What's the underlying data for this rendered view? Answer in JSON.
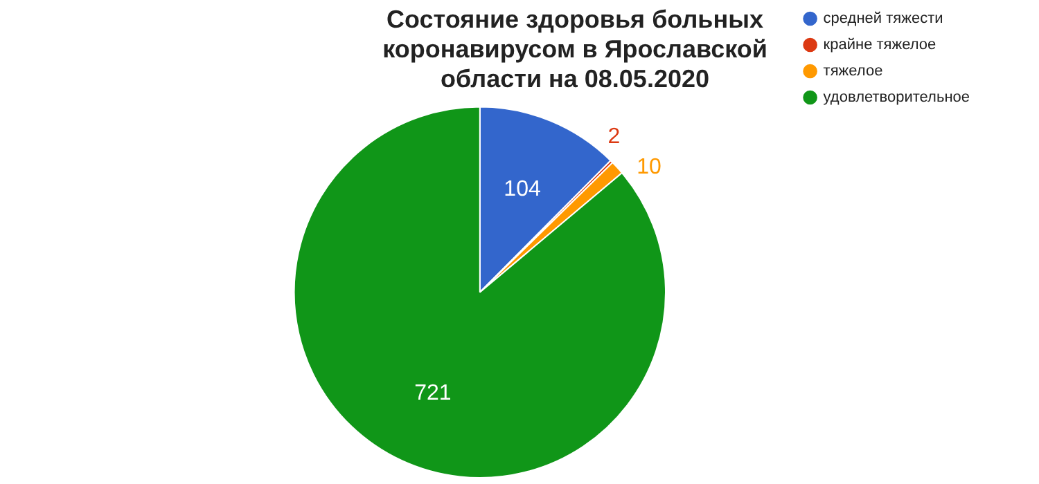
{
  "chart_data": {
    "type": "pie",
    "title": "Состояние здоровья больных коронавирусом в Ярославской области на 08.05.2020",
    "categories": [
      "средней тяжести",
      "крайне тяжелое",
      "тяжелое",
      "удовлетворительное"
    ],
    "values": [
      104,
      2,
      10,
      721
    ],
    "colors": [
      "#3366cc",
      "#dc3912",
      "#ff9900",
      "#109618"
    ],
    "data_labels": true,
    "legend": "top right"
  }
}
